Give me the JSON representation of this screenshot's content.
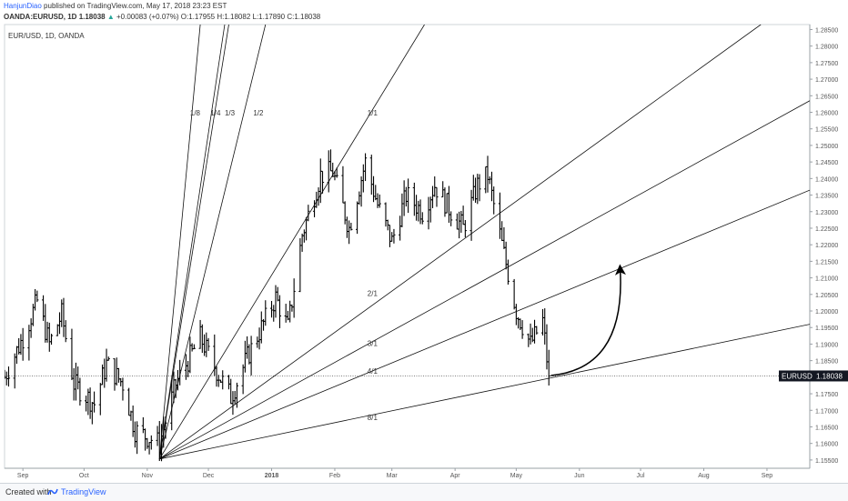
{
  "header": {
    "author": "HanjunDiao",
    "published": "published on TradingView.com, May 17, 2018 23:23 EST",
    "symbol": "OANDA:EURUSD, 1D",
    "last": "1.18038",
    "arrow": "▲",
    "change": "+0.00083 (+0.07%)",
    "open_label": "O:",
    "open": "1.17955",
    "high_label": "H:",
    "high": "1.18082",
    "low_label": "L:",
    "low": "1.17890",
    "close_label": "C:",
    "close": "1.18038"
  },
  "footer": {
    "created_with": "Created with",
    "brand": "TradingView"
  },
  "chart_data": {
    "type": "ohlc",
    "title": "EUR/USD, 1D, OANDA",
    "y_ticks": [
      "1.28500",
      "1.28000",
      "1.27500",
      "1.27000",
      "1.26500",
      "1.26000",
      "1.25500",
      "1.25000",
      "1.24500",
      "1.24000",
      "1.23500",
      "1.23000",
      "1.22500",
      "1.22000",
      "1.21500",
      "1.21000",
      "1.20500",
      "1.20000",
      "1.19500",
      "1.19000",
      "1.18500",
      "1.18000",
      "1.17500",
      "1.17000",
      "1.16500",
      "1.16000",
      "1.15500"
    ],
    "ylim": [
      1.1525,
      1.2865
    ],
    "x_ticks": [
      "Sep",
      "Oct",
      "Nov",
      "Dec",
      "2018",
      "Feb",
      "Mar",
      "Apr",
      "May",
      "Jun",
      "Jul",
      "Aug",
      "Sep"
    ],
    "x_tick_dates": [
      "2017-09-01",
      "2017-10-01",
      "2017-11-01",
      "2017-12-01",
      "2018-01-01",
      "2018-02-01",
      "2018-03-01",
      "2018-04-01",
      "2018-05-01",
      "2018-06-01",
      "2018-07-01",
      "2018-08-01",
      "2018-09-01"
    ],
    "xlim": [
      "2017-08-23",
      "2018-09-22"
    ],
    "last_price_label": "EURUSD",
    "last_price": "1.18038",
    "close_anchors": [
      [
        "2017-08-23",
        1.18
      ],
      [
        "2017-09-01",
        1.192
      ],
      [
        "2017-09-08",
        1.203
      ],
      [
        "2017-09-14",
        1.19
      ],
      [
        "2017-09-20",
        1.199
      ],
      [
        "2017-09-26",
        1.178
      ],
      [
        "2017-10-06",
        1.172
      ],
      [
        "2017-10-12",
        1.184
      ],
      [
        "2017-10-20",
        1.178
      ],
      [
        "2017-10-26",
        1.164
      ],
      [
        "2017-11-07",
        1.16
      ],
      [
        "2017-11-15",
        1.178
      ],
      [
        "2017-11-27",
        1.192
      ],
      [
        "2017-12-05",
        1.182
      ],
      [
        "2017-12-12",
        1.174
      ],
      [
        "2017-12-20",
        1.186
      ],
      [
        "2018-01-03",
        1.204
      ],
      [
        "2018-01-09",
        1.195
      ],
      [
        "2018-01-16",
        1.223
      ],
      [
        "2018-01-25",
        1.241
      ],
      [
        "2018-01-31",
        1.242
      ],
      [
        "2018-02-08",
        1.225
      ],
      [
        "2018-02-16",
        1.245
      ],
      [
        "2018-02-22",
        1.232
      ],
      [
        "2018-03-01",
        1.221
      ],
      [
        "2018-03-08",
        1.235
      ],
      [
        "2018-03-16",
        1.23
      ],
      [
        "2018-03-22",
        1.238
      ],
      [
        "2018-03-29",
        1.231
      ],
      [
        "2018-04-05",
        1.225
      ],
      [
        "2018-04-12",
        1.238
      ],
      [
        "2018-04-17",
        1.241
      ],
      [
        "2018-04-24",
        1.22
      ],
      [
        "2018-05-01",
        1.2
      ],
      [
        "2018-05-08",
        1.19
      ],
      [
        "2018-05-14",
        1.197
      ],
      [
        "2018-05-17",
        1.18
      ]
    ],
    "fan": {
      "origin": [
        "2017-11-07",
        1.1553
      ],
      "lines": [
        {
          "label": "1/8",
          "end": [
            "2017-11-27",
            1.2865
          ]
        },
        {
          "label": "1/4",
          "end": [
            "2017-12-09",
            1.2865
          ]
        },
        {
          "label": "1/3",
          "end": [
            "2017-12-11",
            1.2865
          ]
        },
        {
          "label": "1/2",
          "end": [
            "2017-12-29",
            1.2865
          ]
        },
        {
          "label": "1/1",
          "end": [
            "2018-03-17",
            1.2865
          ]
        },
        {
          "label": "2/1",
          "end": [
            "2018-08-29",
            1.2865
          ]
        },
        {
          "label": "3/1",
          "end": [
            "2018-09-22",
            1.2635
          ]
        },
        {
          "label": "4/1",
          "end": [
            "2018-09-22",
            1.2365
          ]
        },
        {
          "label": "8/1",
          "end": [
            "2018-09-22",
            1.196
          ]
        }
      ],
      "label_positions": [
        {
          "label": "1/8",
          "at": [
            "2017-11-22",
            1.259
          ]
        },
        {
          "label": "1/4",
          "at": [
            "2017-12-02",
            1.259
          ]
        },
        {
          "label": "1/3",
          "at": [
            "2017-12-09",
            1.259
          ]
        },
        {
          "label": "1/2",
          "at": [
            "2017-12-23",
            1.259
          ]
        },
        {
          "label": "1/1",
          "at": [
            "2018-02-17",
            1.259
          ]
        },
        {
          "label": "2/1",
          "at": [
            "2018-02-17",
            1.2045
          ]
        },
        {
          "label": "3/1",
          "at": [
            "2018-02-17",
            1.1895
          ]
        },
        {
          "label": "4/1",
          "at": [
            "2018-02-17",
            1.181
          ]
        },
        {
          "label": "8/1",
          "at": [
            "2018-02-17",
            1.167
          ]
        }
      ]
    },
    "projection_arrow": {
      "from": [
        "2018-05-18",
        1.1805
      ],
      "to": [
        "2018-06-21",
        1.2125
      ]
    }
  }
}
